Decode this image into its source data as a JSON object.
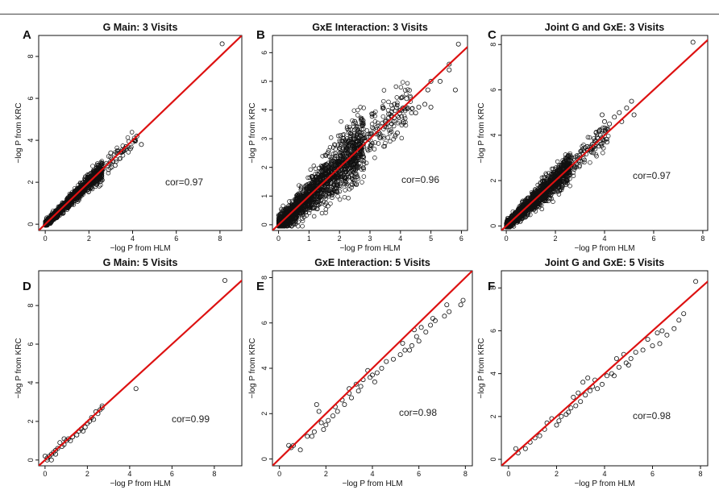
{
  "figure": {
    "identity_line_color": "#dd1111",
    "point_color": "#111111"
  },
  "chart_data": [
    {
      "type": "scatter",
      "panel_label": "A",
      "title": "G Main: 3 Visits",
      "xlabel": "−log P from HLM",
      "ylabel": "−log P from KRC",
      "xlim": [
        -0.3,
        9
      ],
      "ylim": [
        -0.3,
        9
      ],
      "xticks": [
        0,
        2,
        4,
        6,
        8
      ],
      "yticks": [
        0,
        2,
        4,
        6,
        8
      ],
      "annotation": "cor=0.97",
      "dense": {
        "n": 1200,
        "xmax": 2.6,
        "spread": 0.18,
        "tail": 60,
        "tailmax": 4.2,
        "seed": 11
      },
      "points": [
        [
          8.1,
          8.6
        ],
        [
          4.2,
          4.2
        ],
        [
          3.7,
          3.7
        ],
        [
          4.4,
          3.8
        ],
        [
          3.6,
          3.5
        ],
        [
          3.3,
          3.4
        ],
        [
          3.9,
          3.6
        ],
        [
          3.0,
          3.4
        ],
        [
          3.1,
          3.0
        ],
        [
          2.9,
          2.6
        ],
        [
          3.2,
          2.8
        ]
      ]
    },
    {
      "type": "scatter",
      "panel_label": "B",
      "title": "GxE Interaction: 3 Visits",
      "xlabel": "−log P from HLM",
      "ylabel": "−log P from KRC",
      "xlim": [
        -0.2,
        6.2
      ],
      "ylim": [
        -0.2,
        6.6
      ],
      "xticks": [
        0,
        1,
        2,
        3,
        4,
        5,
        6
      ],
      "yticks": [
        0,
        1,
        2,
        3,
        4,
        5,
        6
      ],
      "annotation": "cor=0.96",
      "dense": {
        "n": 1800,
        "xmax": 2.8,
        "spread": 0.42,
        "tail": 180,
        "tailmax": 4.4,
        "seed": 23
      },
      "points": [
        [
          5.9,
          6.3
        ],
        [
          5.8,
          4.7
        ],
        [
          5.6,
          5.4
        ],
        [
          5.3,
          5.0
        ],
        [
          5.0,
          5.0
        ],
        [
          4.9,
          4.7
        ],
        [
          4.8,
          4.2
        ],
        [
          4.6,
          4.1
        ],
        [
          4.5,
          3.9
        ],
        [
          4.2,
          4.4
        ],
        [
          4.1,
          3.6
        ],
        [
          3.9,
          3.2
        ],
        [
          4.0,
          4.0
        ],
        [
          5.0,
          4.1
        ],
        [
          3.7,
          3.8
        ],
        [
          3.5,
          3.6
        ],
        [
          3.3,
          3.2
        ],
        [
          2.5,
          3.6
        ],
        [
          2.3,
          3.3
        ],
        [
          3.8,
          4.2
        ],
        [
          5.6,
          5.6
        ]
      ]
    },
    {
      "type": "scatter",
      "panel_label": "C",
      "title": "Joint G and GxE: 3 Visits",
      "xlabel": "−log P from HLM",
      "ylabel": "−log P from KRC",
      "xlim": [
        -0.2,
        8.2
      ],
      "ylim": [
        -0.2,
        8.4
      ],
      "xticks": [
        0,
        2,
        4,
        6,
        8
      ],
      "yticks": [
        0,
        2,
        4,
        6,
        8
      ],
      "annotation": "cor=0.97",
      "dense": {
        "n": 1500,
        "xmax": 2.6,
        "spread": 0.26,
        "tail": 120,
        "tailmax": 4.2,
        "seed": 37
      },
      "points": [
        [
          7.6,
          8.1
        ],
        [
          5.2,
          4.9
        ],
        [
          4.9,
          5.2
        ],
        [
          4.6,
          5.0
        ],
        [
          4.4,
          4.8
        ],
        [
          4.7,
          4.6
        ],
        [
          4.2,
          4.5
        ],
        [
          4.0,
          4.6
        ],
        [
          3.8,
          4.2
        ],
        [
          3.7,
          3.9
        ],
        [
          4.1,
          3.7
        ],
        [
          3.5,
          3.6
        ],
        [
          3.3,
          3.5
        ],
        [
          5.1,
          5.5
        ],
        [
          3.9,
          4.9
        ],
        [
          3.0,
          3.0
        ]
      ]
    },
    {
      "type": "scatter",
      "panel_label": "D",
      "title": "G Main: 5 Visits",
      "xlabel": "−log P from HLM",
      "ylabel": "−log P from KRC",
      "xlim": [
        -0.3,
        9.3
      ],
      "ylim": [
        -0.3,
        9.8
      ],
      "xticks": [
        0,
        2,
        4,
        6,
        8
      ],
      "yticks": [
        0,
        2,
        4,
        6,
        8
      ],
      "annotation": "cor=0.99",
      "points": [
        [
          8.5,
          9.3
        ],
        [
          4.3,
          3.7
        ],
        [
          2.7,
          2.8
        ],
        [
          2.6,
          2.6
        ],
        [
          2.5,
          2.4
        ],
        [
          2.3,
          2.1
        ],
        [
          2.2,
          2.2
        ],
        [
          2.0,
          1.9
        ],
        [
          1.9,
          1.7
        ],
        [
          1.7,
          1.6
        ],
        [
          1.6,
          1.5
        ],
        [
          1.5,
          1.3
        ],
        [
          1.3,
          1.2
        ],
        [
          1.1,
          1.1
        ],
        [
          1.0,
          1.0
        ],
        [
          0.9,
          0.8
        ],
        [
          0.8,
          0.7
        ],
        [
          0.6,
          0.6
        ],
        [
          0.5,
          0.5
        ],
        [
          0.4,
          0.4
        ],
        [
          0.3,
          0.3
        ],
        [
          0.2,
          0.2
        ],
        [
          0.1,
          0.1
        ],
        [
          0.0,
          0.2
        ],
        [
          0.1,
          0.0
        ],
        [
          0.7,
          0.9
        ],
        [
          1.2,
          1.0
        ],
        [
          1.8,
          1.5
        ],
        [
          0.3,
          0.0
        ],
        [
          0.5,
          0.3
        ],
        [
          2.4,
          2.5
        ],
        [
          0.9,
          1.1
        ],
        [
          2.7,
          2.7
        ],
        [
          2.1,
          2.0
        ]
      ]
    },
    {
      "type": "scatter",
      "panel_label": "E",
      "title": "GxE Interaction: 5 Visits",
      "xlabel": "−log P from HLM",
      "ylabel": "−log P from KRC",
      "xlim": [
        -0.3,
        8.3
      ],
      "ylim": [
        -0.3,
        8.3
      ],
      "xticks": [
        0,
        2,
        4,
        6,
        8
      ],
      "yticks": [
        0,
        2,
        4,
        6,
        8
      ],
      "annotation": "cor=0.98",
      "points": [
        [
          7.9,
          7.0
        ],
        [
          7.8,
          6.8
        ],
        [
          7.3,
          6.5
        ],
        [
          7.2,
          6.8
        ],
        [
          7.1,
          6.3
        ],
        [
          6.7,
          6.1
        ],
        [
          6.6,
          6.2
        ],
        [
          6.5,
          5.9
        ],
        [
          6.3,
          5.6
        ],
        [
          6.1,
          5.8
        ],
        [
          6.0,
          5.2
        ],
        [
          5.9,
          5.4
        ],
        [
          5.8,
          5.7
        ],
        [
          5.7,
          5.0
        ],
        [
          5.6,
          4.8
        ],
        [
          5.4,
          4.8
        ],
        [
          5.3,
          5.1
        ],
        [
          5.2,
          4.6
        ],
        [
          4.9,
          4.4
        ],
        [
          4.6,
          4.3
        ],
        [
          4.4,
          4.0
        ],
        [
          4.2,
          3.8
        ],
        [
          4.0,
          3.7
        ],
        [
          3.9,
          3.6
        ],
        [
          3.8,
          3.9
        ],
        [
          3.6,
          3.5
        ],
        [
          3.5,
          3.2
        ],
        [
          3.4,
          3.0
        ],
        [
          3.3,
          3.3
        ],
        [
          3.1,
          2.7
        ],
        [
          3.0,
          2.9
        ],
        [
          2.8,
          2.4
        ],
        [
          2.7,
          2.6
        ],
        [
          2.5,
          2.1
        ],
        [
          2.4,
          2.3
        ],
        [
          2.3,
          1.9
        ],
        [
          2.1,
          1.7
        ],
        [
          2.0,
          1.5
        ],
        [
          1.9,
          1.3
        ],
        [
          1.8,
          1.6
        ],
        [
          1.7,
          2.1
        ],
        [
          1.6,
          2.4
        ],
        [
          1.5,
          1.2
        ],
        [
          1.4,
          1.0
        ],
        [
          1.2,
          1.0
        ],
        [
          0.9,
          0.4
        ],
        [
          0.6,
          0.6
        ],
        [
          0.5,
          0.5
        ],
        [
          0.4,
          0.6
        ],
        [
          3.0,
          3.1
        ],
        [
          4.1,
          3.4
        ]
      ]
    },
    {
      "type": "scatter",
      "panel_label": "F",
      "title": "Joint G and GxE: 5 Visits",
      "xlabel": "−log P from HLM",
      "ylabel": "−log P from KRC",
      "xlim": [
        -0.3,
        8.3
      ],
      "ylim": [
        -0.3,
        8.8
      ],
      "xticks": [
        0,
        2,
        4,
        6,
        8
      ],
      "yticks": [
        0,
        2,
        4,
        6,
        8
      ],
      "annotation": "cor=0.98",
      "points": [
        [
          7.8,
          8.3
        ],
        [
          7.3,
          6.8
        ],
        [
          7.1,
          6.5
        ],
        [
          6.9,
          6.1
        ],
        [
          6.6,
          5.8
        ],
        [
          6.4,
          6.0
        ],
        [
          6.2,
          5.9
        ],
        [
          6.0,
          5.3
        ],
        [
          5.8,
          5.6
        ],
        [
          5.6,
          5.1
        ],
        [
          5.3,
          5.0
        ],
        [
          5.1,
          4.7
        ],
        [
          4.9,
          4.5
        ],
        [
          4.8,
          4.9
        ],
        [
          4.6,
          4.3
        ],
        [
          4.5,
          4.7
        ],
        [
          4.3,
          4.0
        ],
        [
          4.1,
          3.9
        ],
        [
          3.9,
          3.5
        ],
        [
          3.7,
          3.3
        ],
        [
          3.6,
          3.7
        ],
        [
          3.4,
          3.2
        ],
        [
          3.3,
          3.8
        ],
        [
          3.2,
          3.0
        ],
        [
          3.1,
          3.6
        ],
        [
          3.0,
          2.7
        ],
        [
          2.8,
          2.5
        ],
        [
          2.6,
          2.4
        ],
        [
          2.5,
          2.2
        ],
        [
          2.4,
          2.1
        ],
        [
          2.2,
          2.0
        ],
        [
          2.1,
          1.8
        ],
        [
          2.0,
          1.6
        ],
        [
          1.8,
          1.9
        ],
        [
          1.6,
          1.7
        ],
        [
          1.5,
          1.4
        ],
        [
          1.3,
          1.1
        ],
        [
          1.1,
          1.0
        ],
        [
          0.9,
          0.8
        ],
        [
          0.7,
          0.5
        ],
        [
          0.4,
          0.3
        ],
        [
          0.3,
          0.5
        ],
        [
          2.9,
          3.1
        ],
        [
          5.0,
          4.4
        ],
        [
          6.3,
          5.4
        ],
        [
          4.4,
          3.9
        ],
        [
          3.5,
          3.4
        ],
        [
          2.7,
          2.9
        ]
      ]
    }
  ]
}
